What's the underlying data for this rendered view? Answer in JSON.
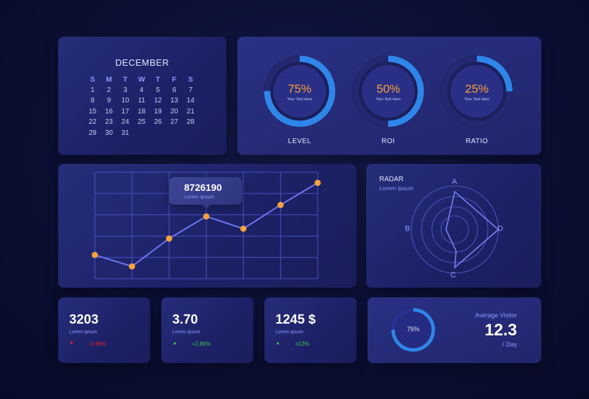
{
  "calendar": {
    "month": "DECEMBER",
    "weekdays": [
      "S",
      "M",
      "T",
      "W",
      "T",
      "F",
      "S"
    ],
    "weeks": [
      [
        "1",
        "2",
        "3",
        "4",
        "5",
        "6",
        "7"
      ],
      [
        "8",
        "9",
        "10",
        "11",
        "12",
        "13",
        "14"
      ],
      [
        "15",
        "16",
        "17",
        "18",
        "19",
        "20",
        "21"
      ],
      [
        "22",
        "23",
        "24",
        "25",
        "26",
        "27",
        "28"
      ],
      [
        "29",
        "30",
        "31",
        "",
        "",
        "",
        ""
      ]
    ]
  },
  "gauges": [
    {
      "value": "75%",
      "fraction": 0.75,
      "subtitle": "Your Text Here",
      "label": "LEVEL"
    },
    {
      "value": "50%",
      "fraction": 0.5,
      "subtitle": "Your Text Here",
      "label": "ROI"
    },
    {
      "value": "25%",
      "fraction": 0.25,
      "subtitle": "Your Text Here",
      "label": "RATIO"
    }
  ],
  "chart_data": {
    "type": "line",
    "x": [
      0,
      1,
      2,
      3,
      4,
      5,
      6
    ],
    "values": [
      29,
      15,
      49,
      76,
      61,
      90,
      117
    ],
    "ylim": [
      0,
      130
    ],
    "grid": true,
    "tooltip": {
      "point_index": 3,
      "value": "8726190",
      "subtitle": "Lorem Ipsum"
    }
  },
  "radar": {
    "title": "RADAR",
    "subtitle": "Lorem Ipsum",
    "axes": [
      "A",
      "D",
      "C",
      "B"
    ],
    "values": [
      0.87,
      1.0,
      0.87,
      0.2
    ]
  },
  "stats": [
    {
      "value": "3203",
      "subtitle": "Lorem ipsum",
      "arrow": "▼",
      "direction": "down",
      "change": "-2.88%"
    },
    {
      "value": "3.70",
      "subtitle": "Lorem ipsum",
      "arrow": "▲",
      "direction": "up",
      "change": "+2.89%"
    },
    {
      "value": "1245 $",
      "subtitle": "Lorem ipsum",
      "arrow": "▲",
      "direction": "up",
      "change": "+12%"
    }
  ],
  "visitor": {
    "percent_label": "75%",
    "fraction": 0.75,
    "title": "Average Visitor",
    "value": "12.3",
    "unit": "/ Day"
  },
  "colors": {
    "accent_orange": "#f7a23b",
    "accent_blue": "#2f86e8",
    "line": "#6f76f0",
    "down": "#e4242e",
    "up": "#40c44f"
  }
}
